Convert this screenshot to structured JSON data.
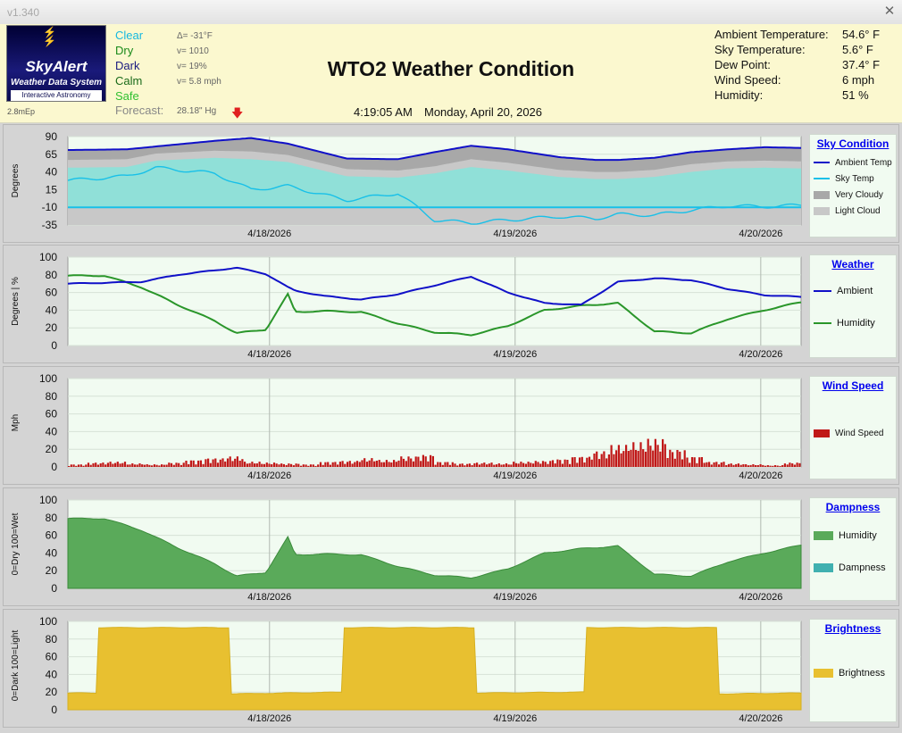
{
  "window": {
    "version": "v1.340",
    "close_icon": "close-icon"
  },
  "logo": {
    "brand": "SkyAlert",
    "subtitle": "Weather Data System",
    "tagline": "Interactive Astronomy",
    "icon": "lightning-icon"
  },
  "status_code": "2.8mEp",
  "conditions": [
    {
      "label": "Clear",
      "value": "Δ= -31°F",
      "color": "#16b8e0"
    },
    {
      "label": "Dry",
      "value": "v= 1010",
      "color": "#1a8a1a"
    },
    {
      "label": "Dark",
      "value": "v= 19%",
      "color": "#1a1a80"
    },
    {
      "label": "Calm",
      "value": "v= 5.8 mph",
      "color": "#1a6a1a"
    },
    {
      "label": "Safe",
      "value": "",
      "color": "#30c030"
    }
  ],
  "forecast": {
    "label": "Forecast:",
    "pressure": "28.18\" Hg",
    "icon": "down-arrow-icon"
  },
  "title": "WTO2 Weather Condition",
  "time": "4:19:05 AM",
  "date": "Monday, April 20, 2026",
  "stats": [
    {
      "label": "Ambient Temperature:",
      "value": "54.6° F"
    },
    {
      "label": "Sky Temperature:",
      "value": "5.6° F"
    },
    {
      "label": "Dew Point:",
      "value": "37.4° F"
    },
    {
      "label": "Wind Speed:",
      "value": "6 mph"
    },
    {
      "label": "Humidity:",
      "value": "51 %"
    }
  ],
  "colors": {
    "ambient": "#1010c8",
    "sky": "#18c0e8",
    "very_cloudy": "#a8a8a8",
    "light_cloud": "#c8c8c8",
    "clear_fill": "#90e0d8",
    "humidity": "#2a962a",
    "humidity_fill": "#5aaa5a",
    "dampness": "#40b0b0",
    "wind": "#c01818",
    "brightness": "#e8c030",
    "plot_bg": "#f1fbf1"
  },
  "x_axis_labels": [
    "4/18/2026",
    "4/19/2026",
    "4/20/2026"
  ],
  "chart_data": [
    {
      "type": "area",
      "legend_title": "Sky Condition",
      "ylabel": "Degrees",
      "y_ticks": [
        "90",
        "65",
        "40",
        "15",
        "-10",
        "-35"
      ],
      "ylim": [
        -35,
        90
      ],
      "x": [
        0,
        0.08,
        0.12,
        0.2,
        0.25,
        0.3,
        0.38,
        0.45,
        0.5,
        0.55,
        0.6,
        0.67,
        0.72,
        0.75,
        0.8,
        0.85,
        0.9,
        0.95,
        1.0
      ],
      "series": [
        {
          "name": "Ambient Temp",
          "values": [
            71,
            72,
            76,
            84,
            88,
            80,
            59,
            58,
            68,
            77,
            72,
            61,
            57,
            57,
            60,
            68,
            72,
            75,
            74
          ]
        },
        {
          "name": "Sky Temp",
          "values": [
            28,
            34,
            46,
            38,
            15,
            20,
            0,
            10,
            -28,
            -32,
            -28,
            -23,
            -26,
            -20,
            -21,
            -14,
            -8,
            -9,
            -7
          ]
        },
        {
          "name": "Very Cloudy",
          "values": [
            57,
            58,
            66,
            70,
            69,
            64,
            44,
            42,
            48,
            58,
            53,
            43,
            40,
            40,
            43,
            51,
            55,
            56,
            55
          ]
        },
        {
          "name": "Light Cloud",
          "values": [
            46,
            47,
            56,
            60,
            58,
            54,
            34,
            32,
            38,
            47,
            42,
            33,
            30,
            30,
            33,
            40,
            45,
            46,
            45
          ]
        }
      ],
      "legend_position": "right"
    },
    {
      "type": "line",
      "legend_title": "Weather",
      "ylabel": "Degrees  |  %",
      "y_ticks": [
        "100",
        "80",
        "60",
        "40",
        "20",
        "0"
      ],
      "ylim": [
        0,
        100
      ],
      "x": [
        0,
        0.05,
        0.1,
        0.15,
        0.2,
        0.23,
        0.27,
        0.3,
        0.31,
        0.35,
        0.4,
        0.45,
        0.5,
        0.55,
        0.6,
        0.65,
        0.7,
        0.75,
        0.8,
        0.85,
        0.9,
        0.95,
        1.0
      ],
      "series": [
        {
          "name": "Ambient",
          "values": [
            70,
            71,
            72,
            80,
            85,
            88,
            81,
            66,
            62,
            56,
            52,
            58,
            68,
            78,
            60,
            48,
            46,
            72,
            76,
            74,
            64,
            57,
            55
          ]
        },
        {
          "name": "Humidity",
          "values": [
            79,
            79,
            66,
            46,
            28,
            14,
            18,
            58,
            38,
            39,
            38,
            25,
            15,
            12,
            22,
            40,
            45,
            48,
            16,
            14,
            30,
            40,
            49
          ]
        }
      ],
      "legend_position": "right"
    },
    {
      "type": "bar",
      "legend_title": "Wind Speed",
      "ylabel": "Mph",
      "y_ticks": [
        "100",
        "80",
        "60",
        "40",
        "20",
        "0"
      ],
      "ylim": [
        0,
        100
      ],
      "series": [
        {
          "name": "Wind Speed",
          "values": [
            3,
            5,
            6,
            4,
            3,
            5,
            8,
            10,
            12,
            6,
            5,
            4,
            3,
            6,
            7,
            10,
            8,
            12,
            14,
            6,
            4,
            5,
            4,
            6,
            7,
            9,
            12,
            18,
            25,
            28,
            32,
            20,
            12,
            6,
            4,
            3,
            2,
            5
          ]
        }
      ],
      "legend_position": "right"
    },
    {
      "type": "area",
      "legend_title": "Dampness",
      "ylabel": "0=Dry 100=Wet",
      "y_ticks": [
        "100",
        "80",
        "60",
        "40",
        "20",
        "0"
      ],
      "ylim": [
        0,
        100
      ],
      "x": [
        0,
        0.05,
        0.1,
        0.15,
        0.2,
        0.23,
        0.27,
        0.3,
        0.31,
        0.35,
        0.4,
        0.45,
        0.5,
        0.55,
        0.6,
        0.65,
        0.7,
        0.75,
        0.8,
        0.85,
        0.9,
        0.95,
        1.0
      ],
      "series": [
        {
          "name": "Humidity",
          "values": [
            79,
            79,
            66,
            46,
            28,
            14,
            18,
            58,
            38,
            39,
            38,
            25,
            15,
            12,
            22,
            40,
            45,
            48,
            16,
            14,
            30,
            40,
            49
          ]
        },
        {
          "name": "Dampness",
          "values": [
            0,
            0,
            0,
            0,
            0,
            0,
            0,
            0,
            0,
            0,
            0,
            0,
            0,
            0,
            0,
            0,
            0,
            0,
            0,
            0,
            0,
            0,
            0
          ]
        }
      ],
      "legend_position": "right"
    },
    {
      "type": "area",
      "legend_title": "Brightness",
      "ylabel": "0=Dark 100=Light",
      "y_ticks": [
        "100",
        "80",
        "60",
        "40",
        "20",
        "0"
      ],
      "ylim": [
        0,
        100
      ],
      "x": [
        0,
        0.04,
        0.041,
        0.22,
        0.221,
        0.375,
        0.376,
        0.555,
        0.556,
        0.705,
        0.706,
        0.885,
        0.886,
        1.0
      ],
      "series": [
        {
          "name": "Brightness",
          "values": [
            19,
            19,
            93,
            93,
            18,
            20,
            93,
            93,
            19,
            20,
            93,
            93,
            18,
            19
          ]
        }
      ],
      "legend_position": "right"
    }
  ]
}
